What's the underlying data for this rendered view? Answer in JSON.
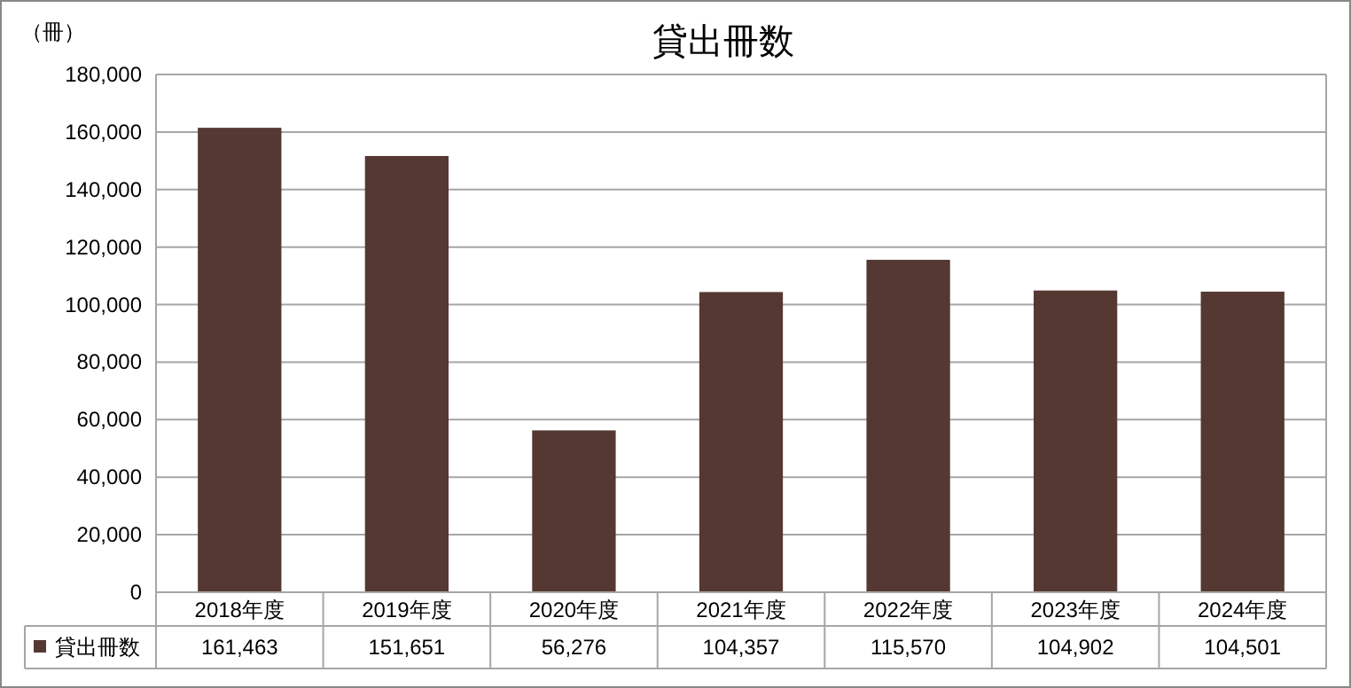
{
  "chart_data": {
    "type": "bar",
    "title": "貸出冊数",
    "ylabel": "（冊）",
    "categories": [
      "2018年度",
      "2019年度",
      "2020年度",
      "2021年度",
      "2022年度",
      "2023年度",
      "2024年度"
    ],
    "series": [
      {
        "name": "貸出冊数",
        "color": "#553832",
        "values": [
          161463,
          151651,
          56276,
          104357,
          115570,
          104902,
          104501
        ],
        "value_labels": [
          "161,463",
          "151,651",
          "56,276",
          "104,357",
          "115,570",
          "104,902",
          "104,501"
        ]
      }
    ],
    "ylim": [
      0,
      180000
    ],
    "yticks": [
      {
        "value": 0,
        "label": "0"
      },
      {
        "value": 20000,
        "label": "20,000"
      },
      {
        "value": 40000,
        "label": "40,000"
      },
      {
        "value": 60000,
        "label": "60,000"
      },
      {
        "value": 80000,
        "label": "80,000"
      },
      {
        "value": 100000,
        "label": "100,000"
      },
      {
        "value": 120000,
        "label": "120,000"
      },
      {
        "value": 140000,
        "label": "140,000"
      },
      {
        "value": 160000,
        "label": "160,000"
      },
      {
        "value": 180000,
        "label": "180,000"
      }
    ],
    "grid": "y",
    "legend": "bottom"
  }
}
